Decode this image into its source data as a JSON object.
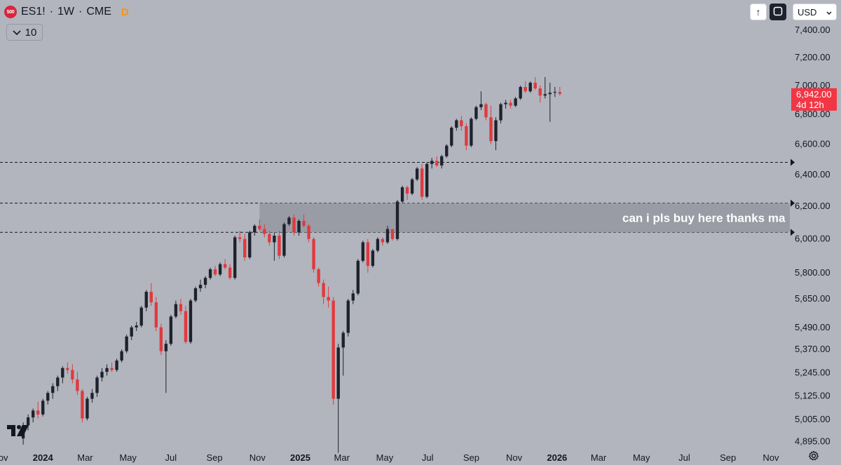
{
  "header": {
    "symbol_badge": "500",
    "symbol": "ES1!",
    "interval": "1W",
    "exchange": "CME",
    "badge": "D",
    "indicator_toggle": "10"
  },
  "toolbar": {
    "currency": "USD"
  },
  "chart_data": {
    "type": "candlestick",
    "y_scale": "log",
    "ylim": [
      4820,
      7480
    ],
    "y_ticks": [
      "7,400.00",
      "7,200.00",
      "7,000.00",
      "6,800.00",
      "6,600.00",
      "6,400.00",
      "6,200.00",
      "6,000.00",
      "5,800.00",
      "5,650.00",
      "5,490.00",
      "5,370.00",
      "5,245.00",
      "5,125.00",
      "5,005.00",
      "4,895.00"
    ],
    "y_tick_values": [
      7400,
      7200,
      7000,
      6800,
      6600,
      6400,
      6200,
      6000,
      5800,
      5650,
      5490,
      5370,
      5245,
      5125,
      5005,
      4895
    ],
    "x_ticks": [
      {
        "label": "Nov",
        "date": "2023-11-01",
        "bold": false
      },
      {
        "label": "2024",
        "date": "2024-01-01",
        "bold": true
      },
      {
        "label": "Mar",
        "date": "2024-03-01",
        "bold": false
      },
      {
        "label": "May",
        "date": "2024-05-01",
        "bold": false
      },
      {
        "label": "Jul",
        "date": "2024-07-01",
        "bold": false
      },
      {
        "label": "Sep",
        "date": "2024-09-01",
        "bold": false
      },
      {
        "label": "Nov",
        "date": "2024-11-01",
        "bold": false
      },
      {
        "label": "2025",
        "date": "2025-01-01",
        "bold": true
      },
      {
        "label": "Mar",
        "date": "2025-03-01",
        "bold": false
      },
      {
        "label": "May",
        "date": "2025-05-01",
        "bold": false
      },
      {
        "label": "Jul",
        "date": "2025-07-01",
        "bold": false
      },
      {
        "label": "Sep",
        "date": "2025-09-01",
        "bold": false
      },
      {
        "label": "Nov",
        "date": "2025-11-01",
        "bold": false
      },
      {
        "label": "2026",
        "date": "2026-01-01",
        "bold": true
      },
      {
        "label": "Mar",
        "date": "2026-03-01",
        "bold": false
      },
      {
        "label": "May",
        "date": "2026-05-01",
        "bold": false
      },
      {
        "label": "Jul",
        "date": "2026-07-01",
        "bold": false
      },
      {
        "label": "Sep",
        "date": "2026-09-01",
        "bold": false
      },
      {
        "label": "Nov",
        "date": "2026-11-01",
        "bold": false
      }
    ],
    "x_range": [
      "2023-11-01",
      "2026-11-28"
    ],
    "first_candle_date": "2023-12-04",
    "candle_period_days": 7,
    "candles_ohlc": [
      [
        4910,
        4990,
        4880,
        4975
      ],
      [
        4975,
        5030,
        4950,
        5015
      ],
      [
        5015,
        5060,
        4990,
        5050
      ],
      [
        5050,
        5095,
        5010,
        5030
      ],
      [
        5030,
        5110,
        5020,
        5100
      ],
      [
        5100,
        5150,
        5080,
        5140
      ],
      [
        5140,
        5190,
        5110,
        5175
      ],
      [
        5175,
        5230,
        5150,
        5220
      ],
      [
        5220,
        5280,
        5190,
        5270
      ],
      [
        5270,
        5300,
        5240,
        5260
      ],
      [
        5260,
        5290,
        5190,
        5210
      ],
      [
        5210,
        5250,
        5130,
        5150
      ],
      [
        5150,
        5160,
        4990,
        5010
      ],
      [
        5010,
        5120,
        5000,
        5110
      ],
      [
        5110,
        5160,
        5090,
        5140
      ],
      [
        5140,
        5230,
        5120,
        5220
      ],
      [
        5220,
        5270,
        5200,
        5250
      ],
      [
        5250,
        5290,
        5230,
        5270
      ],
      [
        5270,
        5300,
        5250,
        5260
      ],
      [
        5260,
        5320,
        5250,
        5310
      ],
      [
        5310,
        5370,
        5300,
        5360
      ],
      [
        5360,
        5450,
        5350,
        5440
      ],
      [
        5440,
        5500,
        5420,
        5490
      ],
      [
        5490,
        5520,
        5470,
        5500
      ],
      [
        5500,
        5610,
        5490,
        5600
      ],
      [
        5600,
        5700,
        5580,
        5690
      ],
      [
        5690,
        5740,
        5610,
        5630
      ],
      [
        5630,
        5660,
        5470,
        5490
      ],
      [
        5490,
        5510,
        5340,
        5360
      ],
      [
        5360,
        5420,
        5140,
        5400
      ],
      [
        5400,
        5560,
        5390,
        5550
      ],
      [
        5550,
        5640,
        5540,
        5620
      ],
      [
        5620,
        5650,
        5560,
        5580
      ],
      [
        5580,
        5610,
        5400,
        5410
      ],
      [
        5410,
        5650,
        5400,
        5640
      ],
      [
        5640,
        5720,
        5630,
        5710
      ],
      [
        5710,
        5760,
        5690,
        5730
      ],
      [
        5730,
        5780,
        5710,
        5770
      ],
      [
        5770,
        5830,
        5760,
        5820
      ],
      [
        5820,
        5840,
        5780,
        5790
      ],
      [
        5790,
        5860,
        5780,
        5850
      ],
      [
        5850,
        5880,
        5820,
        5830
      ],
      [
        5830,
        5850,
        5760,
        5770
      ],
      [
        5770,
        6020,
        5760,
        6010
      ],
      [
        6010,
        6050,
        5980,
        6000
      ],
      [
        6000,
        6030,
        5870,
        5890
      ],
      [
        5890,
        6050,
        5880,
        6040
      ],
      [
        6040,
        6090,
        6020,
        6080
      ],
      [
        6080,
        6120,
        6050,
        6060
      ],
      [
        6060,
        6090,
        6010,
        6030
      ],
      [
        6030,
        6050,
        5960,
        5980
      ],
      [
        5980,
        6040,
        5870,
        6020
      ],
      [
        6020,
        6050,
        5880,
        5900
      ],
      [
        5900,
        6100,
        5890,
        6090
      ],
      [
        6090,
        6140,
        6080,
        6130
      ],
      [
        6130,
        6150,
        6020,
        6040
      ],
      [
        6040,
        6120,
        6020,
        6110
      ],
      [
        6110,
        6150,
        6070,
        6080
      ],
      [
        6080,
        6090,
        5980,
        6000
      ],
      [
        6000,
        6010,
        5800,
        5820
      ],
      [
        5820,
        5830,
        5720,
        5740
      ],
      [
        5740,
        5760,
        5620,
        5660
      ],
      [
        5660,
        5720,
        5600,
        5640
      ],
      [
        5640,
        5660,
        5080,
        5110
      ],
      [
        5110,
        5400,
        4840,
        5380
      ],
      [
        5380,
        5470,
        5230,
        5460
      ],
      [
        5460,
        5650,
        5440,
        5640
      ],
      [
        5640,
        5700,
        5620,
        5680
      ],
      [
        5680,
        5880,
        5670,
        5870
      ],
      [
        5870,
        5990,
        5860,
        5980
      ],
      [
        5980,
        6000,
        5800,
        5840
      ],
      [
        5840,
        5940,
        5830,
        5930
      ],
      [
        5930,
        6010,
        5920,
        6000
      ],
      [
        6000,
        6010,
        5960,
        5980
      ],
      [
        5980,
        6080,
        5970,
        6060
      ],
      [
        6060,
        6060,
        5990,
        6000
      ],
      [
        6000,
        6240,
        5990,
        6230
      ],
      [
        6230,
        6330,
        6220,
        6320
      ],
      [
        6320,
        6330,
        6240,
        6280
      ],
      [
        6280,
        6380,
        6270,
        6370
      ],
      [
        6370,
        6450,
        6360,
        6440
      ],
      [
        6440,
        6470,
        6240,
        6260
      ],
      [
        6260,
        6480,
        6250,
        6470
      ],
      [
        6470,
        6510,
        6440,
        6490
      ],
      [
        6490,
        6520,
        6450,
        6460
      ],
      [
        6460,
        6530,
        6440,
        6520
      ],
      [
        6520,
        6600,
        6510,
        6590
      ],
      [
        6590,
        6720,
        6580,
        6710
      ],
      [
        6710,
        6770,
        6690,
        6760
      ],
      [
        6760,
        6790,
        6690,
        6720
      ],
      [
        6720,
        6740,
        6560,
        6590
      ],
      [
        6590,
        6780,
        6580,
        6770
      ],
      [
        6770,
        6860,
        6760,
        6850
      ],
      [
        6850,
        6960,
        6830,
        6870
      ],
      [
        6870,
        6880,
        6760,
        6780
      ],
      [
        6780,
        6860,
        6600,
        6620
      ],
      [
        6620,
        6780,
        6560,
        6760
      ],
      [
        6760,
        6880,
        6740,
        6870
      ],
      [
        6870,
        6900,
        6840,
        6880
      ],
      [
        6880,
        6900,
        6840,
        6860
      ],
      [
        6860,
        6920,
        6850,
        6910
      ],
      [
        6910,
        7000,
        6900,
        6990
      ],
      [
        6990,
        7030,
        6950,
        6960
      ],
      [
        6960,
        7030,
        6950,
        7020
      ],
      [
        7020,
        7060,
        6970,
        6980
      ],
      [
        6980,
        7000,
        6880,
        6930
      ],
      [
        6930,
        7060,
        6910,
        6940
      ],
      [
        6940,
        7020,
        6750,
        6950
      ],
      [
        6950,
        6990,
        6920,
        6955
      ],
      [
        6955,
        6990,
        6930,
        6942
      ]
    ],
    "candle_colors": {
      "up": "#1e222d",
      "down": "#e03a3e"
    },
    "horizontal_levels": [
      {
        "price": 6480,
        "style": "dashed"
      },
      {
        "price": 6220,
        "style": "dashed"
      },
      {
        "price": 6040,
        "style": "dashed"
      }
    ],
    "zone": {
      "from_date": "2024-11-04",
      "top": 6220,
      "bottom": 6040,
      "label": "can i pls buy here thanks ma",
      "color": "#9598a1"
    },
    "last_price": {
      "value": "6,942.00",
      "countdown": "4d 12h",
      "color": "#f23645",
      "price": 6942
    }
  }
}
